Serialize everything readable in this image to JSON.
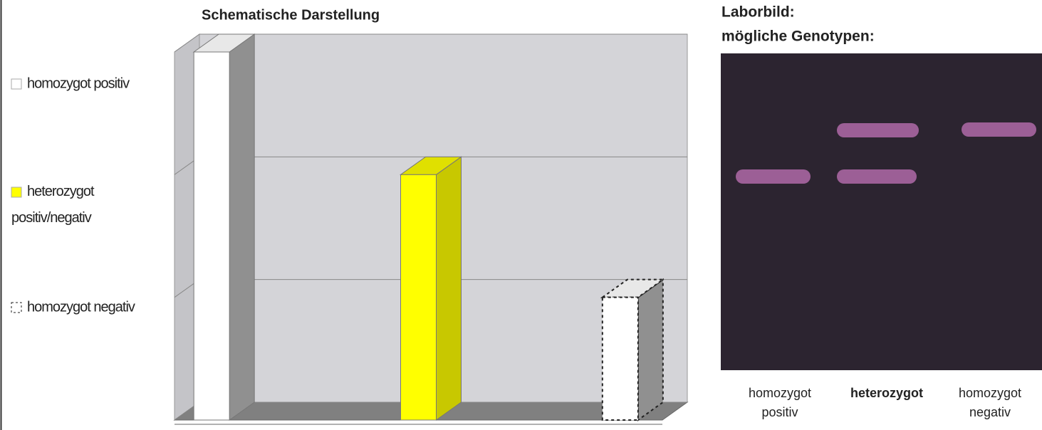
{
  "chart_data": {
    "type": "bar3d",
    "title": "Schematische Darstellung",
    "categories": [
      null,
      null,
      null
    ],
    "series": [
      {
        "name": "homozygot positiv",
        "color": "#ffffff",
        "line_style": "solid",
        "values": [
          3,
          null,
          null
        ]
      },
      {
        "name": "heterozygot positiv/negativ",
        "color": "#ffff00",
        "line_style": "solid",
        "values": [
          null,
          2,
          null
        ]
      },
      {
        "name": "homozygot negativ",
        "color": "#ffffff",
        "line_style": "dashed",
        "values": [
          null,
          null,
          1
        ]
      }
    ],
    "ylim": [
      0,
      3
    ],
    "yticks": [
      0,
      1,
      2,
      3
    ],
    "grid": true
  },
  "photo": {
    "title": [
      "Laborbild:",
      "mögliche Genotypen:"
    ],
    "lanes": [
      {
        "label": [
          "homozygot",
          "positiv"
        ],
        "bold": false
      },
      {
        "label": [
          "heterozygot"
        ],
        "bold": true
      },
      {
        "label": [
          "homozygot",
          "negativ"
        ],
        "bold": false
      }
    ]
  }
}
